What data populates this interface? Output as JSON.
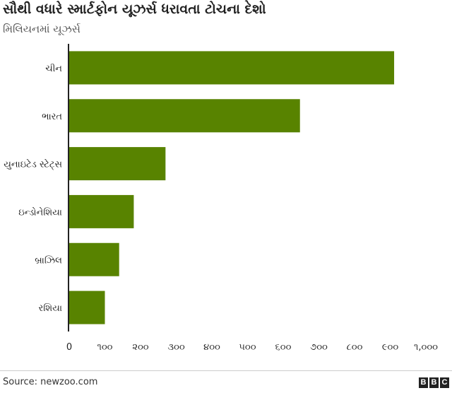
{
  "title": "સૌથી વધારે સ્માર્ટફોન યૂઝર્સ ધરાવતા ટોચના દેશો",
  "subtitle": "મિલિયનમાં યૂઝર્સ",
  "source": "Source: newzoo.com",
  "logo": [
    "B",
    "B",
    "C"
  ],
  "colors": {
    "bar": "#588300",
    "axis": "#222222",
    "text": "#222222"
  },
  "chart_data": {
    "type": "bar",
    "orientation": "horizontal",
    "categories": [
      "ચીન",
      "ભારત",
      "યુનાઇટેડ સ્ટેટ્સ",
      "ઇન્ડોનેશિયા",
      "બ્રાઝિલ",
      "રશિયા"
    ],
    "values": [
      911,
      647,
      270,
      181,
      140,
      100
    ],
    "xlim": [
      0,
      1000
    ],
    "xticks": [
      0,
      100,
      200,
      300,
      400,
      500,
      600,
      700,
      800,
      900,
      1000
    ],
    "xtick_labels": [
      "0",
      "૧૦૦",
      "૨૦૦",
      "૩૦૦",
      "૪૦૦",
      "૫૦૦",
      "૬૦૦",
      "૭૦૦",
      "૮૦૦",
      "૯૦૦",
      "૧,૦૦૦"
    ],
    "grid": false,
    "legend": "none"
  }
}
